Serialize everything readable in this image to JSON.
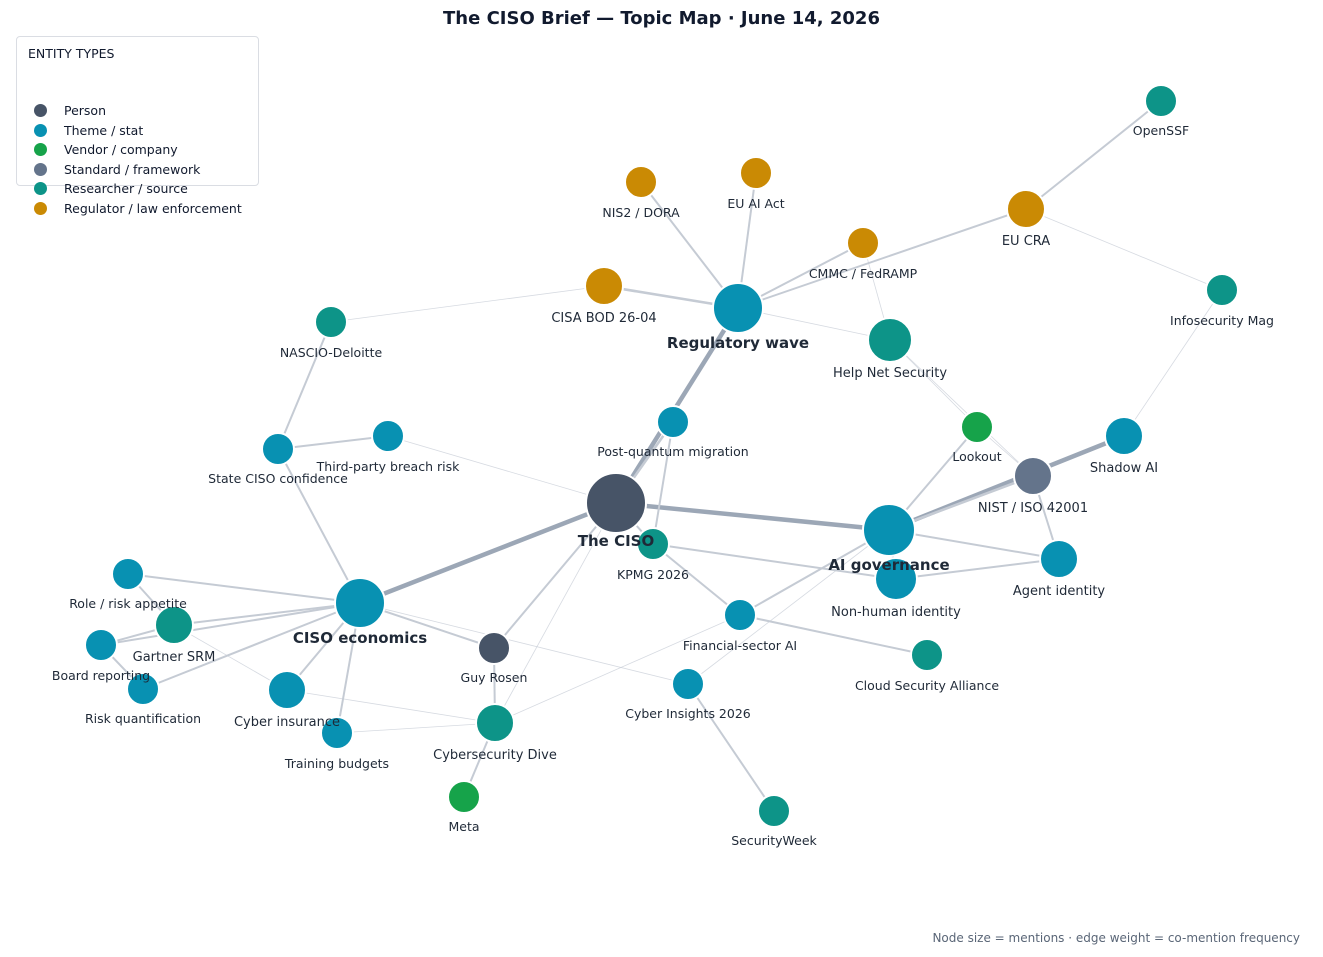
{
  "title": "The CISO Brief — Topic Map · June 14, 2026",
  "legend": {
    "title": "ENTITY TYPES",
    "items": [
      {
        "label": "Person",
        "color": "#475467"
      },
      {
        "label": "Theme / stat",
        "color": "#0891b2"
      },
      {
        "label": "Vendor / company",
        "color": "#16a34a"
      },
      {
        "label": "Standard / framework",
        "color": "#64748b"
      },
      {
        "label": "Researcher / source",
        "color": "#0d9488"
      },
      {
        "label": "Regulator / law enforcement",
        "color": "#ca8a04"
      }
    ]
  },
  "footnote": "Node size = mentions  ·  edge weight = co-mention frequency",
  "nodes": [
    {
      "id": "ciso",
      "label": "The CISO",
      "type": "Person",
      "hub": true
    },
    {
      "id": "reg",
      "label": "Regulatory wave",
      "type": "Theme / stat",
      "hub": true
    },
    {
      "id": "aigov",
      "label": "AI governance",
      "type": "Theme / stat",
      "hub": true
    },
    {
      "id": "econ",
      "label": "CISO economics",
      "type": "Theme / stat",
      "hub": true
    },
    {
      "id": "openssf",
      "label": "OpenSSF",
      "type": "Researcher / source"
    },
    {
      "id": "nis2",
      "label": "NIS2 / DORA",
      "type": "Regulator / law enforcement"
    },
    {
      "id": "euai",
      "label": "EU AI Act",
      "type": "Regulator / law enforcement"
    },
    {
      "id": "eucra",
      "label": "EU CRA",
      "type": "Regulator / law enforcement"
    },
    {
      "id": "cmmc",
      "label": "CMMC / FedRAMP",
      "type": "Regulator / law enforcement"
    },
    {
      "id": "infosec",
      "label": "Infosecurity Mag",
      "type": "Researcher / source"
    },
    {
      "id": "cisa",
      "label": "CISA BOD 26-04",
      "type": "Regulator / law enforcement"
    },
    {
      "id": "nascio",
      "label": "NASCIO-Deloitte",
      "type": "Researcher / source"
    },
    {
      "id": "helpnet",
      "label": "Help Net Security",
      "type": "Researcher / source"
    },
    {
      "id": "pqm",
      "label": "Post-quantum migration",
      "type": "Theme / stat"
    },
    {
      "id": "lookout",
      "label": "Lookout",
      "type": "Vendor / company"
    },
    {
      "id": "shadow",
      "label": "Shadow AI",
      "type": "Theme / stat"
    },
    {
      "id": "state",
      "label": "State CISO confidence",
      "type": "Theme / stat"
    },
    {
      "id": "third",
      "label": "Third-party breach risk",
      "type": "Theme / stat"
    },
    {
      "id": "nist",
      "label": "NIST / ISO 42001",
      "type": "Standard / framework"
    },
    {
      "id": "kpmg",
      "label": "KPMG 2026",
      "type": "Researcher / source"
    },
    {
      "id": "nhi",
      "label": "Non-human identity",
      "type": "Theme / stat"
    },
    {
      "id": "agent",
      "label": "Agent identity",
      "type": "Theme / stat"
    },
    {
      "id": "role",
      "label": "Role / risk appetite",
      "type": "Theme / stat"
    },
    {
      "id": "gartner",
      "label": "Gartner SRM",
      "type": "Researcher / source"
    },
    {
      "id": "board",
      "label": "Board reporting",
      "type": "Theme / stat"
    },
    {
      "id": "riskq",
      "label": "Risk quantification",
      "type": "Theme / stat"
    },
    {
      "id": "finai",
      "label": "Financial-sector AI",
      "type": "Theme / stat"
    },
    {
      "id": "csa",
      "label": "Cloud Security Alliance",
      "type": "Researcher / source"
    },
    {
      "id": "guy",
      "label": "Guy Rosen",
      "type": "Person"
    },
    {
      "id": "cyins",
      "label": "Cyber insurance",
      "type": "Theme / stat"
    },
    {
      "id": "cyinsights",
      "label": "Cyber Insights 2026",
      "type": "Theme / stat"
    },
    {
      "id": "training",
      "label": "Training budgets",
      "type": "Theme / stat"
    },
    {
      "id": "dive",
      "label": "Cybersecurity Dive",
      "type": "Researcher / source"
    },
    {
      "id": "meta",
      "label": "Meta",
      "type": "Vendor / company"
    },
    {
      "id": "secweek",
      "label": "SecurityWeek",
      "type": "Researcher / source"
    }
  ],
  "edges": [
    {
      "source": "ciso",
      "target": "aigov",
      "weight": 5
    },
    {
      "source": "ciso",
      "target": "econ",
      "weight": 5
    },
    {
      "source": "ciso",
      "target": "reg",
      "weight": 5
    },
    {
      "source": "ciso",
      "target": "pqm",
      "weight": 3
    },
    {
      "source": "ciso",
      "target": "third",
      "weight": 1
    },
    {
      "source": "ciso",
      "target": "kpmg",
      "weight": 2
    },
    {
      "source": "ciso",
      "target": "guy",
      "weight": 2
    },
    {
      "source": "ciso",
      "target": "dive",
      "weight": 1
    },
    {
      "source": "reg",
      "target": "nis2",
      "weight": 2
    },
    {
      "source": "reg",
      "target": "euai",
      "weight": 2
    },
    {
      "source": "reg",
      "target": "cmmc",
      "weight": 2
    },
    {
      "source": "reg",
      "target": "eucra",
      "weight": 2
    },
    {
      "source": "reg",
      "target": "cisa",
      "weight": 3
    },
    {
      "source": "reg",
      "target": "helpnet",
      "weight": 1
    },
    {
      "source": "cisa",
      "target": "nascio",
      "weight": 1
    },
    {
      "source": "eucra",
      "target": "openssf",
      "weight": 2
    },
    {
      "source": "eucra",
      "target": "infosec",
      "weight": 1
    },
    {
      "source": "infosec",
      "target": "shadow",
      "weight": 1
    },
    {
      "source": "cmmc",
      "target": "helpnet",
      "weight": 1
    },
    {
      "source": "helpnet",
      "target": "nist",
      "weight": 1
    },
    {
      "source": "lookout",
      "target": "aigov",
      "weight": 2
    },
    {
      "source": "lookout",
      "target": "helpnet",
      "weight": 1
    },
    {
      "source": "aigov",
      "target": "shadow",
      "weight": 4
    },
    {
      "source": "aigov",
      "target": "nist",
      "weight": 3
    },
    {
      "source": "aigov",
      "target": "agent",
      "weight": 2
    },
    {
      "source": "aigov",
      "target": "finai",
      "weight": 2
    },
    {
      "source": "aigov",
      "target": "cyinsights",
      "weight": 1
    },
    {
      "source": "aigov",
      "target": "nhi",
      "weight": 2
    },
    {
      "source": "nist",
      "target": "agent",
      "weight": 2
    },
    {
      "source": "nist",
      "target": "lookout",
      "weight": 1
    },
    {
      "source": "kpmg",
      "target": "nhi",
      "weight": 2
    },
    {
      "source": "kpmg",
      "target": "finai",
      "weight": 2
    },
    {
      "source": "kpmg",
      "target": "pqm",
      "weight": 2
    },
    {
      "source": "nhi",
      "target": "agent",
      "weight": 2
    },
    {
      "source": "finai",
      "target": "csa",
      "weight": 2
    },
    {
      "source": "econ",
      "target": "state",
      "weight": 2
    },
    {
      "source": "econ",
      "target": "role",
      "weight": 2
    },
    {
      "source": "econ",
      "target": "gartner",
      "weight": 2
    },
    {
      "source": "econ",
      "target": "board",
      "weight": 2
    },
    {
      "source": "econ",
      "target": "riskq",
      "weight": 2
    },
    {
      "source": "econ",
      "target": "cyins",
      "weight": 2
    },
    {
      "source": "econ",
      "target": "training",
      "weight": 2
    },
    {
      "source": "econ",
      "target": "guy",
      "weight": 2
    },
    {
      "source": "econ",
      "target": "cyinsights",
      "weight": 1
    },
    {
      "source": "state",
      "target": "nascio",
      "weight": 2
    },
    {
      "source": "state",
      "target": "third",
      "weight": 2
    },
    {
      "source": "gartner",
      "target": "role",
      "weight": 2
    },
    {
      "source": "gartner",
      "target": "board",
      "weight": 2
    },
    {
      "source": "gartner",
      "target": "cyins",
      "weight": 1
    },
    {
      "source": "board",
      "target": "riskq",
      "weight": 2
    },
    {
      "source": "cyins",
      "target": "dive",
      "weight": 1
    },
    {
      "source": "training",
      "target": "dive",
      "weight": 1
    },
    {
      "source": "guy",
      "target": "dive",
      "weight": 2
    },
    {
      "source": "dive",
      "target": "meta",
      "weight": 2
    },
    {
      "source": "dive",
      "target": "finai",
      "weight": 1
    },
    {
      "source": "cyinsights",
      "target": "secweek",
      "weight": 2
    }
  ]
}
